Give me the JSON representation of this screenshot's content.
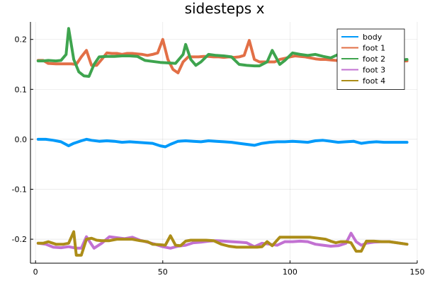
{
  "chart_data": {
    "type": "line",
    "title": "sidesteps x",
    "xlabel": "",
    "ylabel": "",
    "xlim": [
      -2,
      150
    ],
    "ylim": [
      -0.248,
      0.235
    ],
    "grid": true,
    "legend_position": "top-right",
    "xticks": [
      0,
      50,
      100,
      150
    ],
    "yticks": [
      -0.2,
      -0.1,
      0.0,
      0.1,
      0.2
    ],
    "xtick_labels": [
      "0",
      "50",
      "100",
      "150"
    ],
    "ytick_labels": [
      "-0.2",
      "-0.1",
      "0.0",
      "0.1",
      "0.2"
    ],
    "series": [
      {
        "name": "body",
        "color": "#009AFA",
        "x": [
          1,
          4,
          7,
          10,
          13,
          15,
          18,
          20,
          22,
          25,
          28,
          31,
          34,
          37,
          40,
          43,
          46,
          49,
          51,
          53,
          56,
          59,
          62,
          65,
          68,
          71,
          74,
          77,
          80,
          83,
          86,
          89,
          92,
          95,
          98,
          101,
          104,
          107,
          110,
          113,
          116,
          119,
          122,
          125,
          128,
          131,
          134,
          137,
          140,
          143,
          146
        ],
        "y": [
          0.0,
          0.0,
          -0.002,
          -0.005,
          -0.013,
          -0.008,
          -0.003,
          0.0,
          -0.002,
          -0.004,
          -0.003,
          -0.004,
          -0.006,
          -0.005,
          -0.006,
          -0.007,
          -0.008,
          -0.013,
          -0.015,
          -0.01,
          -0.004,
          -0.003,
          -0.004,
          -0.005,
          -0.003,
          -0.004,
          -0.005,
          -0.006,
          -0.008,
          -0.01,
          -0.012,
          -0.008,
          -0.006,
          -0.005,
          -0.005,
          -0.004,
          -0.005,
          -0.006,
          -0.003,
          -0.002,
          -0.004,
          -0.006,
          -0.005,
          -0.004,
          -0.008,
          -0.006,
          -0.005,
          -0.006,
          -0.006,
          -0.006,
          -0.006
        ]
      },
      {
        "name": "foot 1",
        "color": "#E26F46",
        "x": [
          1,
          3,
          5,
          8,
          10,
          12,
          14,
          16,
          18,
          20,
          22,
          24,
          26,
          28,
          30,
          32,
          34,
          36,
          38,
          40,
          42,
          44,
          46,
          48,
          50,
          52,
          54,
          56,
          58,
          60,
          62,
          64,
          66,
          68,
          70,
          72,
          74,
          76,
          78,
          80,
          82,
          84,
          86,
          88,
          90,
          92,
          94,
          96,
          98,
          100,
          102,
          104,
          106,
          108,
          110,
          112,
          114,
          116,
          118,
          120,
          122,
          124,
          126,
          128,
          130,
          132,
          134,
          136,
          138,
          140,
          142,
          144,
          146
        ],
        "y": [
          0.158,
          0.158,
          0.152,
          0.151,
          0.151,
          0.151,
          0.151,
          0.15,
          0.165,
          0.178,
          0.148,
          0.148,
          0.16,
          0.173,
          0.172,
          0.172,
          0.17,
          0.172,
          0.172,
          0.171,
          0.17,
          0.168,
          0.17,
          0.173,
          0.2,
          0.16,
          0.14,
          0.133,
          0.155,
          0.165,
          0.165,
          0.165,
          0.166,
          0.166,
          0.165,
          0.165,
          0.164,
          0.165,
          0.164,
          0.165,
          0.168,
          0.198,
          0.16,
          0.155,
          0.155,
          0.155,
          0.155,
          0.16,
          0.162,
          0.165,
          0.167,
          0.166,
          0.165,
          0.163,
          0.161,
          0.16,
          0.16,
          0.159,
          0.158,
          0.157,
          0.155,
          0.155,
          0.155,
          0.157,
          0.155,
          0.155,
          0.157,
          0.157,
          0.157,
          0.157,
          0.157,
          0.157,
          0.157
        ]
      },
      {
        "name": "foot 2",
        "color": "#3EA44E",
        "x": [
          1,
          3,
          5,
          8,
          10,
          12,
          13,
          15,
          17,
          19,
          21,
          23,
          25,
          28,
          31,
          34,
          37,
          40,
          43,
          46,
          49,
          52,
          55,
          58,
          59,
          61,
          63,
          65,
          68,
          71,
          74,
          77,
          80,
          83,
          86,
          88,
          91,
          93,
          96,
          98,
          101,
          104,
          107,
          110,
          113,
          116,
          119,
          122,
          125,
          128,
          131,
          134,
          137,
          140,
          143,
          146
        ],
        "y": [
          0.157,
          0.157,
          0.158,
          0.157,
          0.158,
          0.17,
          0.222,
          0.16,
          0.135,
          0.127,
          0.126,
          0.15,
          0.165,
          0.166,
          0.166,
          0.167,
          0.167,
          0.166,
          0.158,
          0.156,
          0.154,
          0.153,
          0.152,
          0.17,
          0.19,
          0.16,
          0.148,
          0.155,
          0.17,
          0.168,
          0.167,
          0.165,
          0.15,
          0.148,
          0.147,
          0.147,
          0.155,
          0.178,
          0.15,
          0.158,
          0.173,
          0.17,
          0.168,
          0.17,
          0.166,
          0.163,
          0.17,
          0.156,
          0.167,
          0.17,
          0.17,
          0.165,
          0.163,
          0.16,
          0.158,
          0.16
        ]
      },
      {
        "name": "foot 3",
        "color": "#C271D2",
        "x": [
          1,
          4,
          7,
          10,
          13,
          16,
          18,
          20,
          23,
          26,
          29,
          32,
          35,
          38,
          41,
          44,
          47,
          50,
          53,
          56,
          59,
          62,
          65,
          68,
          71,
          74,
          77,
          80,
          83,
          86,
          89,
          92,
          95,
          98,
          101,
          104,
          107,
          110,
          113,
          116,
          119,
          122,
          124,
          126,
          128,
          130,
          133,
          136,
          139,
          142,
          146
        ],
        "y": [
          -0.208,
          -0.21,
          -0.216,
          -0.217,
          -0.215,
          -0.218,
          -0.218,
          -0.195,
          -0.218,
          -0.208,
          -0.195,
          -0.197,
          -0.199,
          -0.196,
          -0.202,
          -0.206,
          -0.21,
          -0.215,
          -0.218,
          -0.214,
          -0.212,
          -0.207,
          -0.206,
          -0.204,
          -0.203,
          -0.204,
          -0.205,
          -0.206,
          -0.207,
          -0.215,
          -0.208,
          -0.21,
          -0.212,
          -0.205,
          -0.205,
          -0.204,
          -0.205,
          -0.21,
          -0.212,
          -0.214,
          -0.213,
          -0.208,
          -0.188,
          -0.205,
          -0.212,
          -0.208,
          -0.206,
          -0.205,
          -0.205,
          -0.207,
          -0.21
        ]
      },
      {
        "name": "foot 4",
        "color": "#AC8D18",
        "x": [
          1,
          3,
          5,
          8,
          11,
          13,
          15,
          16,
          18,
          20,
          22,
          24,
          26,
          29,
          32,
          35,
          38,
          41,
          44,
          46,
          49,
          51,
          53,
          55,
          57,
          59,
          61,
          64,
          67,
          70,
          73,
          76,
          79,
          82,
          85,
          87,
          89,
          91,
          93,
          96,
          99,
          102,
          105,
          108,
          111,
          114,
          116,
          118,
          120,
          122,
          124,
          126,
          128,
          130,
          133,
          136,
          139,
          142,
          146
        ],
        "y": [
          -0.208,
          -0.208,
          -0.205,
          -0.21,
          -0.21,
          -0.208,
          -0.185,
          -0.232,
          -0.232,
          -0.2,
          -0.198,
          -0.202,
          -0.203,
          -0.203,
          -0.2,
          -0.2,
          -0.2,
          -0.203,
          -0.205,
          -0.21,
          -0.211,
          -0.212,
          -0.193,
          -0.212,
          -0.213,
          -0.204,
          -0.202,
          -0.202,
          -0.202,
          -0.203,
          -0.21,
          -0.214,
          -0.216,
          -0.216,
          -0.216,
          -0.216,
          -0.215,
          -0.205,
          -0.213,
          -0.196,
          -0.196,
          -0.196,
          -0.196,
          -0.196,
          -0.198,
          -0.2,
          -0.204,
          -0.207,
          -0.205,
          -0.205,
          -0.207,
          -0.224,
          -0.224,
          -0.204,
          -0.204,
          -0.205,
          -0.205,
          -0.207,
          -0.21
        ]
      }
    ]
  }
}
